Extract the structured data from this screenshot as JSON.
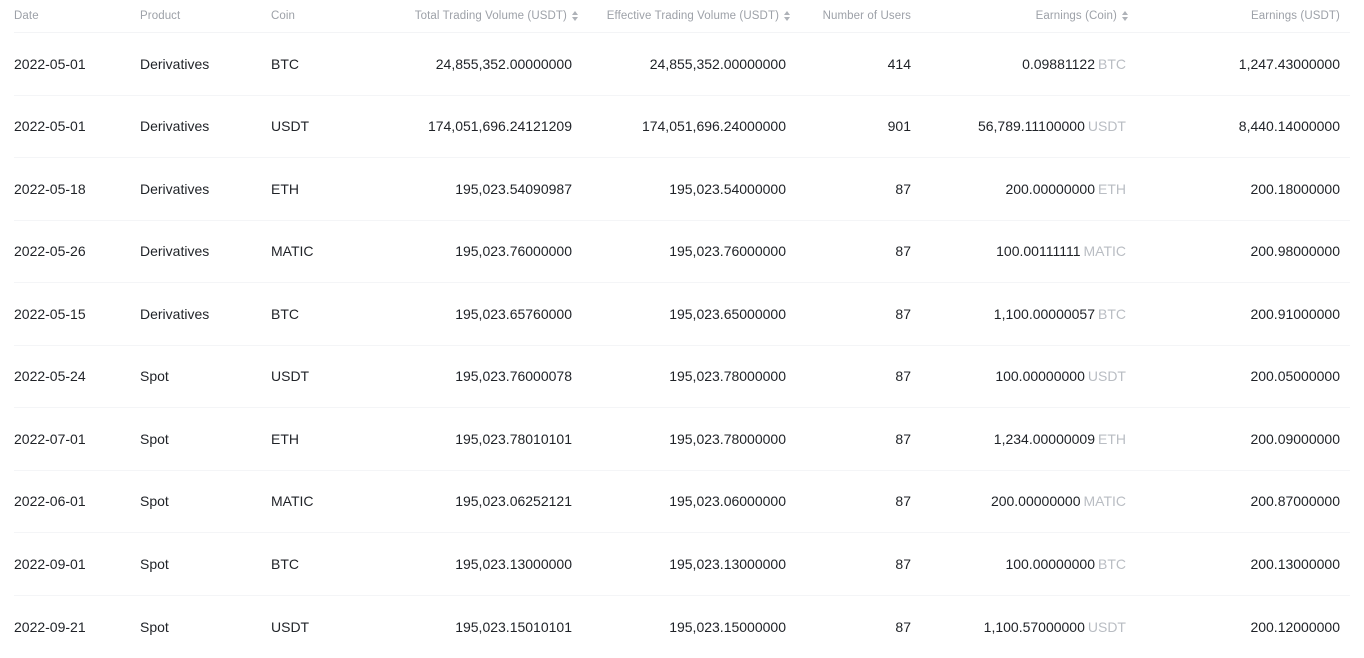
{
  "colors": {
    "background": "#ffffff",
    "header_text": "#9da1a8",
    "cell_text": "#1f2227",
    "coin_unit_text": "#b9bdc3",
    "row_divider": "#f4f5f7",
    "sort_icon": "#aeb2b8"
  },
  "table": {
    "columns": [
      {
        "label": "Date",
        "sortable": false,
        "align": "left"
      },
      {
        "label": "Product",
        "sortable": false,
        "align": "left"
      },
      {
        "label": "Coin",
        "sortable": false,
        "align": "left"
      },
      {
        "label": "Total Trading Volume (USDT)",
        "sortable": true,
        "align": "right"
      },
      {
        "label": "Effective Trading Volume (USDT)",
        "sortable": true,
        "align": "right"
      },
      {
        "label": "Number of Users",
        "sortable": false,
        "align": "right"
      },
      {
        "label": "Earnings (Coin)",
        "sortable": true,
        "align": "right"
      },
      {
        "label": "Earnings (USDT)",
        "sortable": false,
        "align": "right"
      }
    ],
    "rows": [
      {
        "date": "2022-05-01",
        "product": "Derivatives",
        "coin": "BTC",
        "total_volume": "24,855,352.00000000",
        "effective_volume": "24,855,352.00000000",
        "users": "414",
        "earnings_coin": "0.09881122",
        "earnings_coin_unit": "BTC",
        "earnings_usdt": "1,247.43000000"
      },
      {
        "date": "2022-05-01",
        "product": "Derivatives",
        "coin": "USDT",
        "total_volume": "174,051,696.24121209",
        "effective_volume": "174,051,696.24000000",
        "users": "901",
        "earnings_coin": "56,789.11100000",
        "earnings_coin_unit": "USDT",
        "earnings_usdt": "8,440.14000000"
      },
      {
        "date": "2022-05-18",
        "product": "Derivatives",
        "coin": "ETH",
        "total_volume": "195,023.54090987",
        "effective_volume": "195,023.54000000",
        "users": "87",
        "earnings_coin": "200.00000000",
        "earnings_coin_unit": "ETH",
        "earnings_usdt": "200.18000000"
      },
      {
        "date": "2022-05-26",
        "product": "Derivatives",
        "coin": "MATIC",
        "total_volume": "195,023.76000000",
        "effective_volume": "195,023.76000000",
        "users": "87",
        "earnings_coin": "100.00111111",
        "earnings_coin_unit": "MATIC",
        "earnings_usdt": "200.98000000"
      },
      {
        "date": "2022-05-15",
        "product": "Derivatives",
        "coin": "BTC",
        "total_volume": "195,023.65760000",
        "effective_volume": "195,023.65000000",
        "users": "87",
        "earnings_coin": "1,100.00000057",
        "earnings_coin_unit": "BTC",
        "earnings_usdt": "200.91000000"
      },
      {
        "date": "2022-05-24",
        "product": "Spot",
        "coin": "USDT",
        "total_volume": "195,023.76000078",
        "effective_volume": "195,023.78000000",
        "users": "87",
        "earnings_coin": "100.00000000",
        "earnings_coin_unit": "USDT",
        "earnings_usdt": "200.05000000"
      },
      {
        "date": "2022-07-01",
        "product": "Spot",
        "coin": "ETH",
        "total_volume": "195,023.78010101",
        "effective_volume": "195,023.78000000",
        "users": "87",
        "earnings_coin": "1,234.00000009",
        "earnings_coin_unit": "ETH",
        "earnings_usdt": "200.09000000"
      },
      {
        "date": "2022-06-01",
        "product": "Spot",
        "coin": "MATIC",
        "total_volume": "195,023.06252121",
        "effective_volume": "195,023.06000000",
        "users": "87",
        "earnings_coin": "200.00000000",
        "earnings_coin_unit": "MATIC",
        "earnings_usdt": "200.87000000"
      },
      {
        "date": "2022-09-01",
        "product": "Spot",
        "coin": "BTC",
        "total_volume": "195,023.13000000",
        "effective_volume": "195,023.13000000",
        "users": "87",
        "earnings_coin": "100.00000000",
        "earnings_coin_unit": "BTC",
        "earnings_usdt": "200.13000000"
      },
      {
        "date": "2022-09-21",
        "product": "Spot",
        "coin": "USDT",
        "total_volume": "195,023.15010101",
        "effective_volume": "195,023.15000000",
        "users": "87",
        "earnings_coin": "1,100.57000000",
        "earnings_coin_unit": "USDT",
        "earnings_usdt": "200.12000000"
      }
    ]
  }
}
